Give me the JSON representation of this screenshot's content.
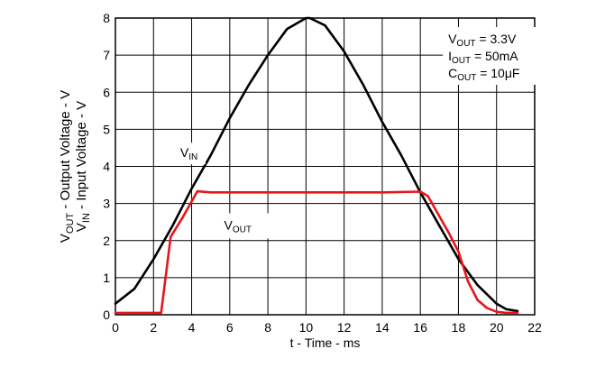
{
  "chart_data": {
    "type": "line",
    "xlabel": "t - Time - ms",
    "ylabel_line1": {
      "main": "V",
      "sub": "OUT",
      "rest": " - Output Voltage - V"
    },
    "ylabel_line2": {
      "main": "V",
      "sub": "IN",
      "rest": " - Input Voltage - V"
    },
    "xlim": [
      0,
      22
    ],
    "ylim": [
      0,
      8
    ],
    "x_ticks": [
      "0",
      "2",
      "4",
      "6",
      "8",
      "10",
      "12",
      "14",
      "16",
      "18",
      "20",
      "22"
    ],
    "y_ticks": [
      "0",
      "1",
      "2",
      "3",
      "4",
      "5",
      "6",
      "7",
      "8"
    ],
    "grid": true,
    "conditions": [
      {
        "main": "V",
        "sub": "OUT",
        "rest": " = 3.3V"
      },
      {
        "main": "I",
        "sub": "OUT",
        "rest": " = 50mA"
      },
      {
        "main": "C",
        "sub": "OUT",
        "rest": " = 10μF"
      }
    ],
    "series": [
      {
        "name": "VIN",
        "label": {
          "main": "V",
          "sub": "IN"
        },
        "color": "#000000",
        "x": [
          0,
          1,
          2,
          3,
          4,
          5,
          6,
          7,
          8,
          9,
          10,
          10.2,
          11,
          12,
          13,
          14,
          15,
          16,
          17,
          18,
          19,
          20,
          20.5,
          21.1
        ],
        "y": [
          0.3,
          0.7,
          1.5,
          2.4,
          3.4,
          4.3,
          5.3,
          6.2,
          7.0,
          7.7,
          8.0,
          8.0,
          7.8,
          7.1,
          6.2,
          5.2,
          4.3,
          3.3,
          2.4,
          1.5,
          0.8,
          0.3,
          0.15,
          0.1
        ]
      },
      {
        "name": "VOUT",
        "label": {
          "main": "V",
          "sub": "OUT"
        },
        "color": "#e8151b",
        "x": [
          0,
          2.4,
          2.9,
          3.5,
          4.3,
          5,
          8,
          10,
          12,
          14,
          16,
          16.4,
          17.5,
          18,
          18.5,
          19,
          19.5,
          20,
          20.5,
          21.1
        ],
        "y": [
          0.05,
          0.05,
          2.1,
          2.6,
          3.33,
          3.3,
          3.3,
          3.3,
          3.3,
          3.3,
          3.32,
          3.2,
          2.2,
          1.7,
          0.9,
          0.4,
          0.18,
          0.08,
          0.05,
          0.05
        ]
      }
    ]
  }
}
